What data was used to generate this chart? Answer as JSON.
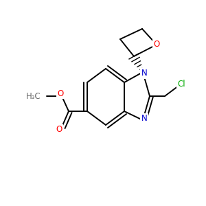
{
  "bg_color": "#ffffff",
  "atom_colors": {
    "C": "#000000",
    "N": "#0000cd",
    "O": "#ff0000",
    "Cl": "#00aa00",
    "gray": "#666666"
  },
  "bond_color": "#000000",
  "bond_width": 1.4,
  "figsize": [
    3.0,
    3.0
  ],
  "dpi": 100,
  "xlim": [
    0,
    300
  ],
  "ylim": [
    0,
    300
  ]
}
